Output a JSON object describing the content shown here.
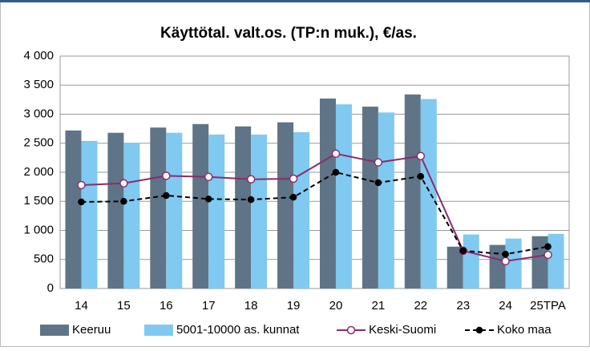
{
  "chart_data": {
    "type": "bar",
    "title": "Käyttötal. valt.os. (TP:n muk.), €/as.",
    "categories": [
      "14",
      "15",
      "16",
      "17",
      "18",
      "19",
      "20",
      "21",
      "22",
      "23",
      "24",
      "25TPA"
    ],
    "series": [
      {
        "name": "Keeruu",
        "type": "bar",
        "color": "#5f7486",
        "values": [
          2720,
          2680,
          2770,
          2830,
          2790,
          2860,
          3270,
          3130,
          3340,
          720,
          750,
          900
        ]
      },
      {
        "name": "5001-10000 as. kunnat",
        "type": "bar",
        "color": "#80c9f0",
        "values": [
          2540,
          2510,
          2680,
          2650,
          2650,
          2690,
          3170,
          3030,
          3260,
          930,
          860,
          940
        ]
      },
      {
        "name": "Keski-Suomi",
        "type": "line",
        "color": "#8b2c6b",
        "marker": "open-circle",
        "values": [
          1780,
          1810,
          1940,
          1920,
          1880,
          1890,
          2320,
          2170,
          2280,
          650,
          470,
          580
        ]
      },
      {
        "name": "Koko maa",
        "type": "line",
        "color": "#000000",
        "marker": "dot",
        "dashed": true,
        "values": [
          1490,
          1500,
          1600,
          1540,
          1530,
          1570,
          2000,
          1820,
          1930,
          650,
          590,
          720
        ]
      }
    ],
    "ylim": [
      0,
      4000
    ],
    "yticks": [
      0,
      500,
      {
        "value": 1000,
        "label": "1 000"
      },
      {
        "value": 1500,
        "label": "1 500"
      },
      {
        "value": 2000,
        "label": "2 000"
      },
      {
        "value": 2500,
        "label": "2 500"
      },
      {
        "value": 3000,
        "label": "3 000"
      },
      {
        "value": 3500,
        "label": "3 500"
      },
      {
        "value": 4000,
        "label": "4 000"
      }
    ],
    "grid": true,
    "legend": "bottom"
  }
}
